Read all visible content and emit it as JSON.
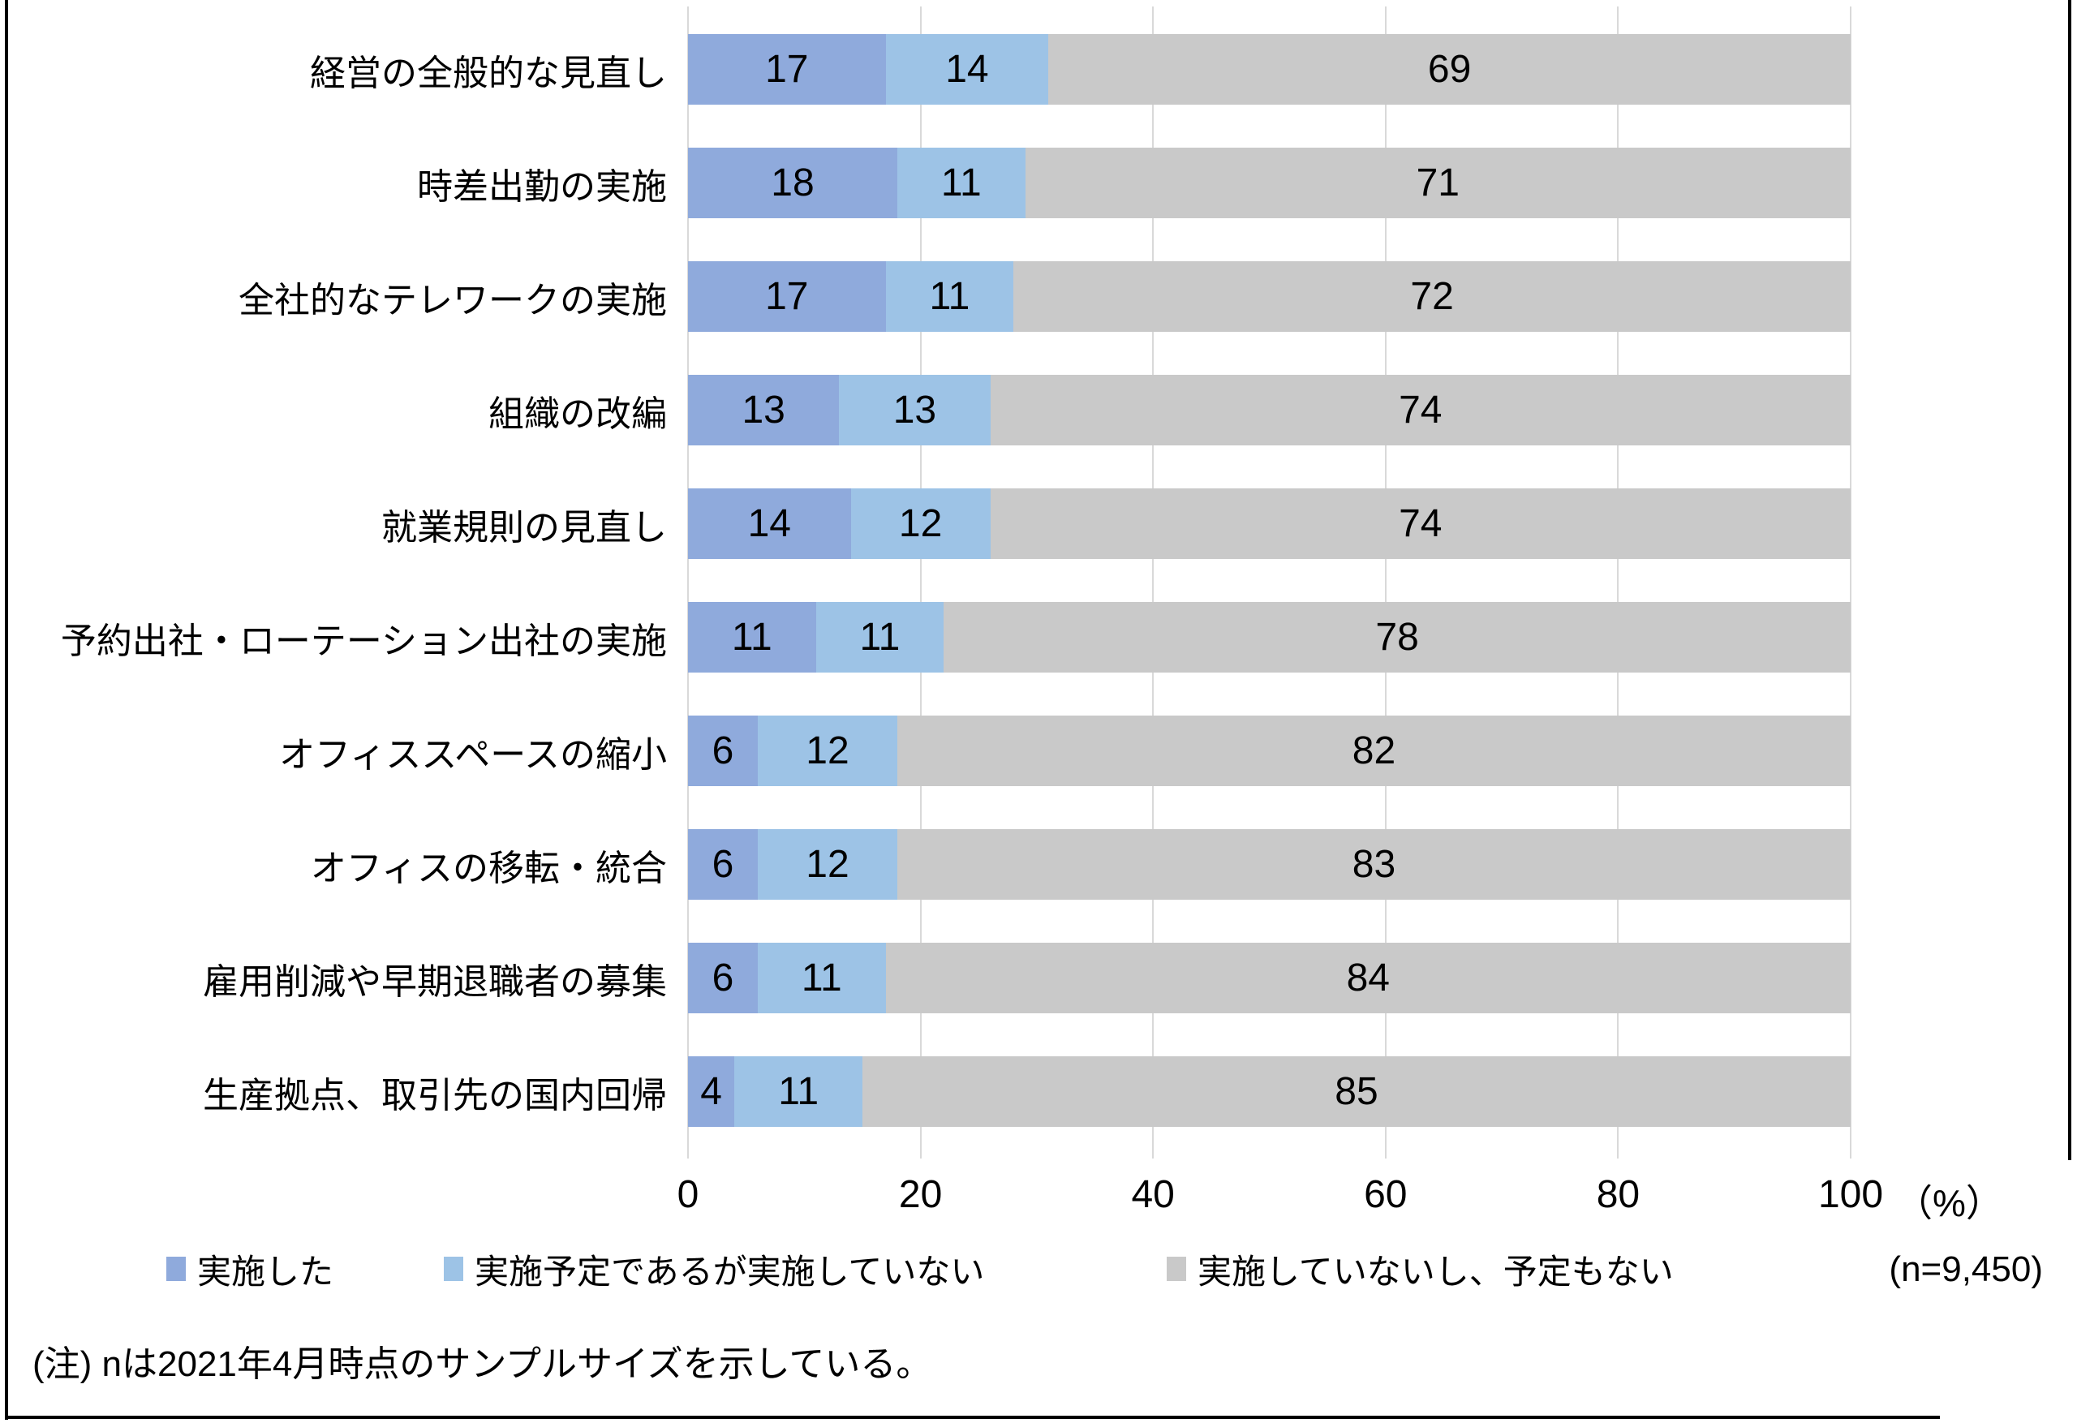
{
  "chart_data": {
    "type": "bar",
    "orientation": "horizontal",
    "stacked": true,
    "grid": true,
    "legend_position": "bottom",
    "categories": [
      "経営の全般的な見直し",
      "時差出勤の実施",
      "全社的なテレワークの実施",
      "組織の改編",
      "就業規則の見直し",
      "予約出社・ローテーション出社の実施",
      "オフィススペースの縮小",
      "オフィスの移転・統合",
      "雇用削減や早期退職者の募集",
      "生産拠点、取引先の国内回帰"
    ],
    "series": [
      {
        "name": "実施した",
        "color": "#8FAADC",
        "values": [
          17,
          18,
          17,
          13,
          14,
          11,
          6,
          6,
          6,
          4
        ]
      },
      {
        "name": "実施予定であるが実施していない",
        "color": "#9DC3E6",
        "values": [
          14,
          11,
          11,
          13,
          12,
          11,
          12,
          12,
          11,
          11
        ]
      },
      {
        "name": "実施していないし、予定もない",
        "color": "#C9C9C9",
        "values": [
          69,
          71,
          72,
          74,
          74,
          78,
          82,
          83,
          84,
          85
        ]
      }
    ],
    "x_axis": {
      "min": 0,
      "max": 100,
      "ticks": [
        0,
        20,
        40,
        60,
        80,
        100
      ],
      "unit_label": "（%）"
    },
    "gridline_color": "#D9D9D9"
  },
  "annotations": {
    "sample_size": "(n=9,450)",
    "note": "(注) nは2021年4月時点のサンプルサイズを示している。"
  }
}
